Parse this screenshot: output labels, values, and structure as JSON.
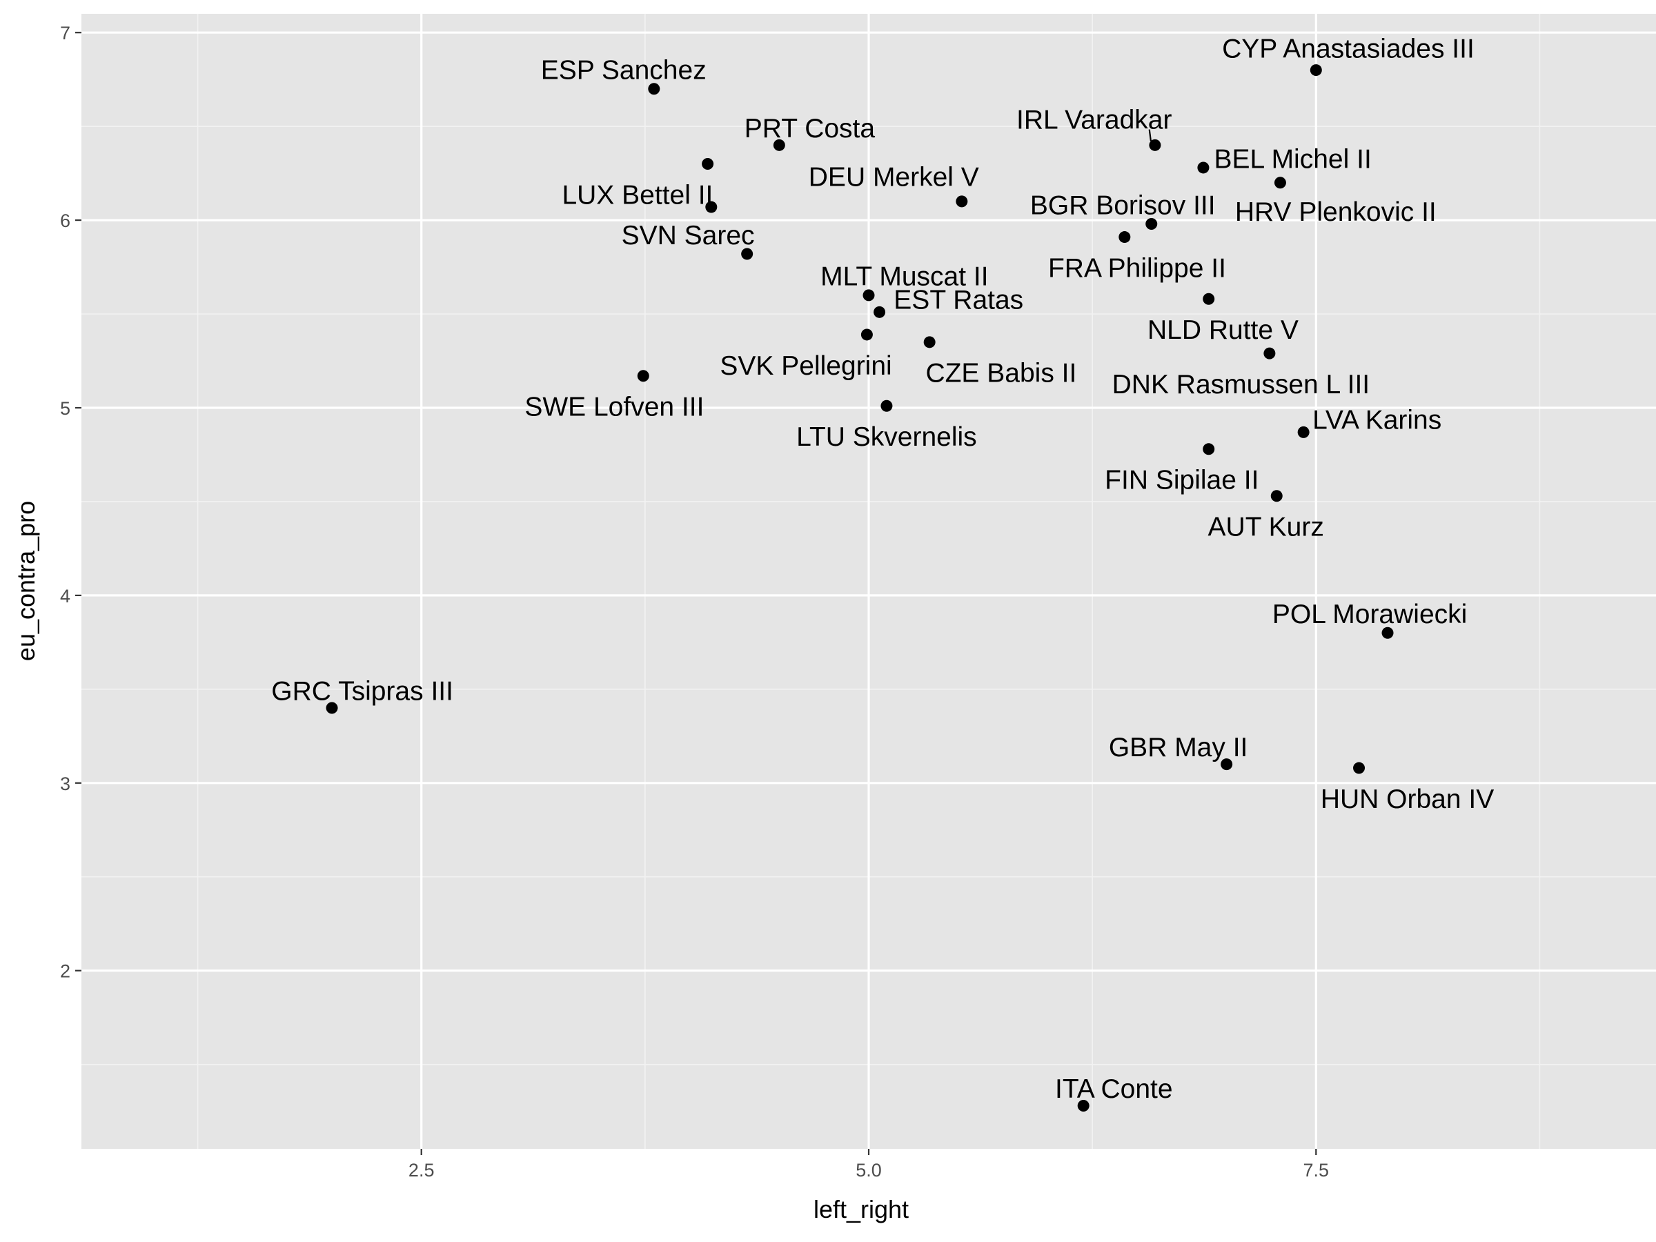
{
  "chart_data": {
    "type": "scatter",
    "xlabel": "left_right",
    "ylabel": "eu_contra_pro",
    "xlim": [
      0.6,
      9.4
    ],
    "ylim": [
      1.05,
      7.1
    ],
    "x_ticks": [
      2.5,
      5.0,
      7.5
    ],
    "x_tick_labels": [
      "2.5",
      "5.0",
      "7.5"
    ],
    "y_ticks": [
      2,
      3,
      4,
      5,
      6,
      7
    ],
    "y_tick_labels": [
      "2",
      "3",
      "4",
      "5",
      "6",
      "7"
    ],
    "grid": true,
    "points": [
      {
        "label": "CYP Anastasiades III",
        "x": 7.5,
        "y": 6.8,
        "anchor": "middle",
        "dx": 0.18,
        "dy": 0.115
      },
      {
        "label": "ESP Sanchez",
        "x": 3.8,
        "y": 6.7,
        "anchor": "middle",
        "dx": -0.17,
        "dy": 0.1
      },
      {
        "label": "IRL Varadkar",
        "x": 6.6,
        "y": 6.4,
        "anchor": "middle",
        "dx": -0.34,
        "dy": 0.135,
        "leader": true
      },
      {
        "label": "PRT Costa",
        "x": 4.5,
        "y": 6.4,
        "anchor": "middle",
        "dx": 0.17,
        "dy": 0.09
      },
      {
        "label": "LUX Bettel II",
        "x": 4.1,
        "y": 6.3,
        "anchor": "end",
        "dx": 0.03,
        "dy": -0.165
      },
      {
        "label": "BEL Michel II",
        "x": 6.87,
        "y": 6.28,
        "anchor": "start",
        "dx": 0.06,
        "dy": 0.045
      },
      {
        "label": "HRV Plenkovic II",
        "x": 7.3,
        "y": 6.2,
        "anchor": "middle",
        "dx": 0.31,
        "dy": -0.155
      },
      {
        "label": "DEU Merkel V",
        "x": 5.52,
        "y": 6.1,
        "anchor": "middle",
        "dx": -0.38,
        "dy": 0.13
      },
      {
        "label": "LUX_dup",
        "x": 4.12,
        "y": 6.07,
        "anchor": "middle",
        "dx": 0,
        "dy": 0,
        "hidden": true
      },
      {
        "label": "BGR Borisov III",
        "x": 6.58,
        "y": 5.98,
        "anchor": "middle",
        "dx": -0.16,
        "dy": 0.1
      },
      {
        "label": "FRA Philippe II",
        "x": 6.43,
        "y": 5.91,
        "anchor": "middle",
        "dx": 0.07,
        "dy": -0.165
      },
      {
        "label": "SVN Sarec",
        "x": 4.32,
        "y": 5.82,
        "anchor": "middle",
        "dx": -0.33,
        "dy": 0.1
      },
      {
        "label": "MLT Muscat II",
        "x": 5.0,
        "y": 5.6,
        "anchor": "middle",
        "dx": 0.2,
        "dy": 0.1
      },
      {
        "label": "NLD Rutte V",
        "x": 6.9,
        "y": 5.58,
        "anchor": "middle",
        "dx": 0.08,
        "dy": -0.165
      },
      {
        "label": "EST Ratas",
        "x": 5.06,
        "y": 5.51,
        "anchor": "start",
        "dx": 0.08,
        "dy": 0.065
      },
      {
        "label": "SVK Pellegrini",
        "x": 4.99,
        "y": 5.39,
        "anchor": "end",
        "dx": 0.14,
        "dy": -0.165
      },
      {
        "label": "CZE Babis II",
        "x": 5.34,
        "y": 5.35,
        "anchor": "middle",
        "dx": 0.4,
        "dy": -0.165
      },
      {
        "label": "DNK Rasmussen L III",
        "x": 7.24,
        "y": 5.29,
        "anchor": "middle",
        "dx": -0.16,
        "dy": -0.165
      },
      {
        "label": "SWE Lofven III",
        "x": 3.74,
        "y": 5.17,
        "anchor": "end",
        "dx": 0.34,
        "dy": -0.165
      },
      {
        "label": "LTU Skvernelis",
        "x": 5.1,
        "y": 5.01,
        "anchor": "middle",
        "dx": 0.0,
        "dy": -0.165
      },
      {
        "label": "LVA Karins",
        "x": 7.43,
        "y": 4.87,
        "anchor": "start",
        "dx": 0.05,
        "dy": 0.065
      },
      {
        "label": "FIN Sipilae II",
        "x": 6.9,
        "y": 4.78,
        "anchor": "middle",
        "dx": -0.15,
        "dy": -0.165
      },
      {
        "label": "AUT Kurz",
        "x": 7.28,
        "y": 4.53,
        "anchor": "middle",
        "dx": -0.06,
        "dy": -0.165
      },
      {
        "label": "POL Morawiecki",
        "x": 7.9,
        "y": 3.8,
        "anchor": "middle",
        "dx": -0.1,
        "dy": 0.1
      },
      {
        "label": "GRC Tsipras III",
        "x": 2.0,
        "y": 3.4,
        "anchor": "middle",
        "dx": 0.17,
        "dy": 0.09
      },
      {
        "label": "GBR May II",
        "x": 7.0,
        "y": 3.1,
        "anchor": "middle",
        "dx": -0.27,
        "dy": 0.09
      },
      {
        "label": "HUN Orban IV",
        "x": 7.74,
        "y": 3.08,
        "anchor": "middle",
        "dx": 0.27,
        "dy": -0.165
      },
      {
        "label": "ITA Conte",
        "x": 6.2,
        "y": 1.28,
        "anchor": "middle",
        "dx": 0.17,
        "dy": 0.09
      }
    ]
  }
}
